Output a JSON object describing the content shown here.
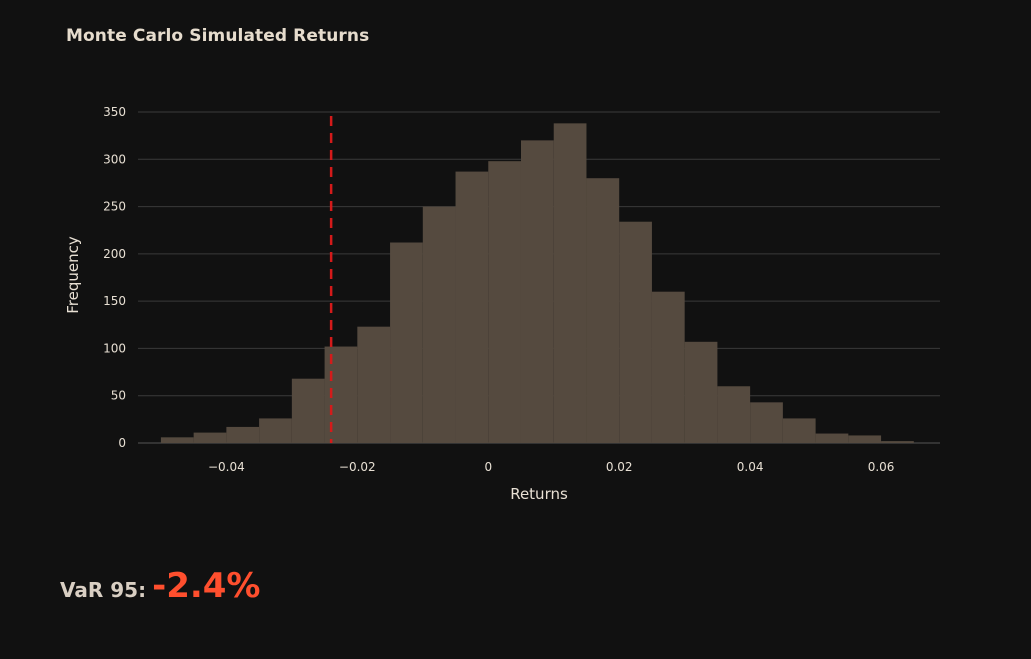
{
  "chart_data": {
    "type": "bar",
    "title": "Monte Carlo Simulated Returns",
    "xlabel": "Returns",
    "ylabel": "Frequency",
    "xlim": [
      -0.0535,
      0.069
    ],
    "ylim": [
      0,
      350
    ],
    "grid": true,
    "bin_width": 0.005,
    "bin_starts": [
      -0.05,
      -0.045,
      -0.04,
      -0.035,
      -0.03,
      -0.025,
      -0.02,
      -0.015,
      -0.01,
      -0.005,
      0.0,
      0.005,
      0.01,
      0.015,
      0.02,
      0.025,
      0.03,
      0.035,
      0.04,
      0.045,
      0.05,
      0.055,
      0.06
    ],
    "counts": [
      6,
      11,
      17,
      26,
      68,
      102,
      123,
      212,
      250,
      287,
      298,
      320,
      338,
      280,
      234,
      160,
      107,
      60,
      43,
      26,
      10,
      8,
      2
    ],
    "x_ticks": [
      {
        "value": -0.04,
        "label": "−0.04"
      },
      {
        "value": -0.02,
        "label": "−0.02"
      },
      {
        "value": 0,
        "label": "0"
      },
      {
        "value": 0.02,
        "label": "0.02"
      },
      {
        "value": 0.04,
        "label": "0.04"
      },
      {
        "value": 0.06,
        "label": "0.06"
      }
    ],
    "y_ticks": [
      {
        "value": 0,
        "label": "0"
      },
      {
        "value": 50,
        "label": "50"
      },
      {
        "value": 100,
        "label": "100"
      },
      {
        "value": 150,
        "label": "150"
      },
      {
        "value": 200,
        "label": "200"
      },
      {
        "value": 250,
        "label": "250"
      },
      {
        "value": 300,
        "label": "300"
      },
      {
        "value": 350,
        "label": "350"
      }
    ],
    "var_line": {
      "x": -0.024,
      "style": "dashed"
    },
    "colors": {
      "bar": "#554a3f",
      "var_line": "#d41a1a",
      "grid": "#3a3a3a",
      "tick_text": "#e8e0d4"
    }
  },
  "metric": {
    "label": "VaR 95:",
    "value": "-2.4%"
  }
}
